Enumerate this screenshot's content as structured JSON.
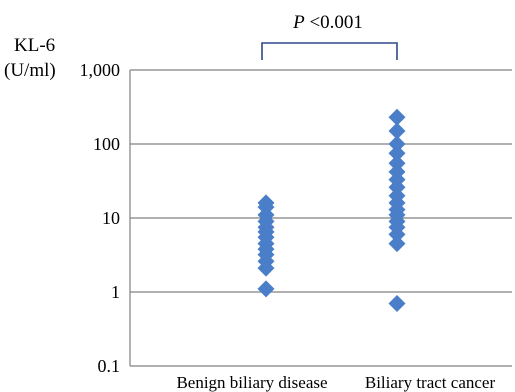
{
  "chart_data": {
    "type": "scatter",
    "title": "",
    "ylabel_line1": "KL-6",
    "ylabel_line2": "(U/ml)",
    "ylim": [
      0.1,
      1000
    ],
    "yscale": "log",
    "yticks": [
      0.1,
      1,
      10,
      100,
      1000
    ],
    "ytick_labels": [
      "0.1",
      "1",
      "10",
      "100",
      "1,000"
    ],
    "categories": [
      "Benign biliary disease",
      "Biliary tract cancer"
    ],
    "grid": true,
    "marker_color": "#4a7ec8",
    "bracket_color": "#2e4a8c",
    "annotation": {
      "p_letter": "P",
      "p_value": " <0.001"
    },
    "series": [
      {
        "values": [
          16,
          14,
          11,
          9,
          7.5,
          6.5,
          5.5,
          4.5,
          3.8,
          3.2,
          2.6,
          2.1,
          1.1
        ]
      },
      {
        "values": [
          230,
          150,
          100,
          75,
          55,
          42,
          33,
          26,
          20,
          16,
          13,
          11,
          9,
          7.5,
          6,
          4.5,
          0.7
        ]
      }
    ]
  }
}
